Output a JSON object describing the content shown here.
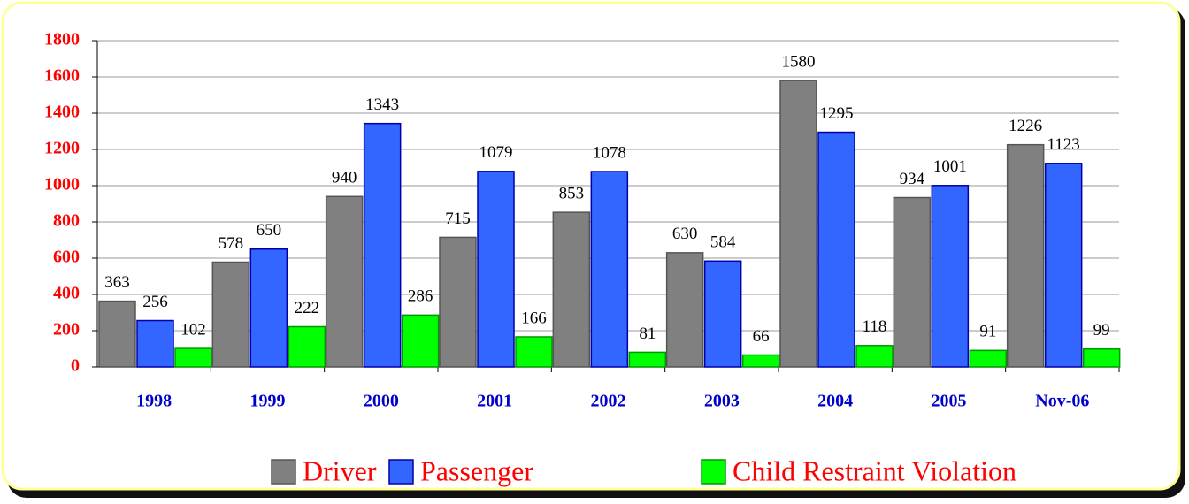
{
  "chart_data": {
    "type": "bar",
    "categories": [
      "1998",
      "1999",
      "2000",
      "2001",
      "2002",
      "2003",
      "2004",
      "2005",
      "Nov-06"
    ],
    "series": [
      {
        "name": "Driver",
        "color": "#808080",
        "values": [
          363,
          578,
          940,
          715,
          853,
          630,
          1580,
          934,
          1226
        ]
      },
      {
        "name": "Passenger",
        "color": "#3366ff",
        "values": [
          256,
          650,
          1343,
          1079,
          1078,
          584,
          1295,
          1001,
          1123
        ]
      },
      {
        "name": "Child Restraint Violation",
        "color": "#00ff00",
        "values": [
          102,
          222,
          286,
          166,
          81,
          66,
          118,
          91,
          99
        ]
      }
    ],
    "ylim": [
      0,
      1800
    ],
    "yticks": [
      0,
      200,
      400,
      600,
      800,
      1000,
      1200,
      1400,
      1600,
      1800
    ],
    "grid": true
  }
}
